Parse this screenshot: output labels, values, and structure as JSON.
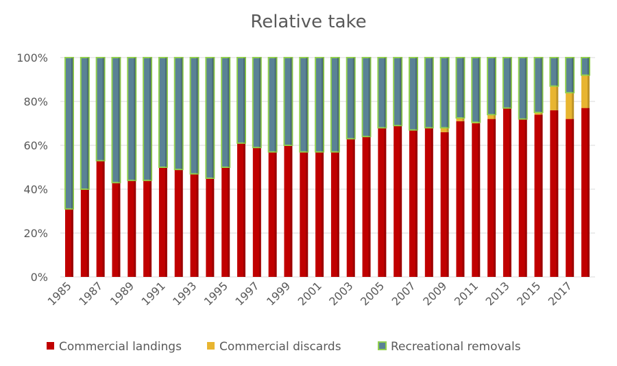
{
  "chart_data": {
    "type": "bar",
    "stacked": true,
    "title": "Relative take",
    "xlabel": "",
    "ylabel": "",
    "ylim": [
      0,
      100
    ],
    "y_ticks": [
      "0%",
      "20%",
      "40%",
      "60%",
      "80%",
      "100%"
    ],
    "categories": [
      "1985",
      "1986",
      "1987",
      "1988",
      "1989",
      "1990",
      "1991",
      "1992",
      "1993",
      "1994",
      "1995",
      "1996",
      "1997",
      "1998",
      "1999",
      "2000",
      "2001",
      "2002",
      "2003",
      "2004",
      "2005",
      "2006",
      "2007",
      "2008",
      "2009",
      "2010",
      "2011",
      "2012",
      "2013",
      "2014",
      "2015",
      "2016",
      "2017",
      "2018"
    ],
    "series": [
      {
        "name": "Commercial landings",
        "color": "#c00000",
        "values": [
          31,
          40,
          53,
          43,
          44,
          44,
          50,
          49,
          47,
          45,
          50,
          61,
          59,
          57,
          60,
          57,
          57,
          57,
          63,
          64,
          68,
          69,
          67,
          68,
          66,
          71,
          70,
          72,
          77,
          72,
          74,
          76,
          72,
          77
        ]
      },
      {
        "name": "Commercial discards",
        "color": "#e8b530",
        "values": [
          0,
          0,
          0,
          0,
          0,
          0,
          0,
          0,
          0,
          0,
          0,
          0,
          0,
          0,
          0,
          0,
          0,
          0,
          0,
          0,
          0,
          0,
          0,
          0,
          2,
          1.5,
          0.5,
          2,
          0,
          0,
          1,
          11,
          12,
          15
        ]
      },
      {
        "name": "Recreational removals",
        "color": "#5a8296",
        "values": [
          69,
          60,
          47,
          57,
          56,
          56,
          50,
          51,
          53,
          55,
          50,
          39,
          41,
          43,
          40,
          43,
          43,
          43,
          37,
          36,
          32,
          31,
          33,
          32,
          32,
          27.5,
          29.5,
          26,
          23,
          28,
          25,
          13,
          16,
          8
        ]
      }
    ],
    "grid": true,
    "legend_position": "bottom"
  }
}
